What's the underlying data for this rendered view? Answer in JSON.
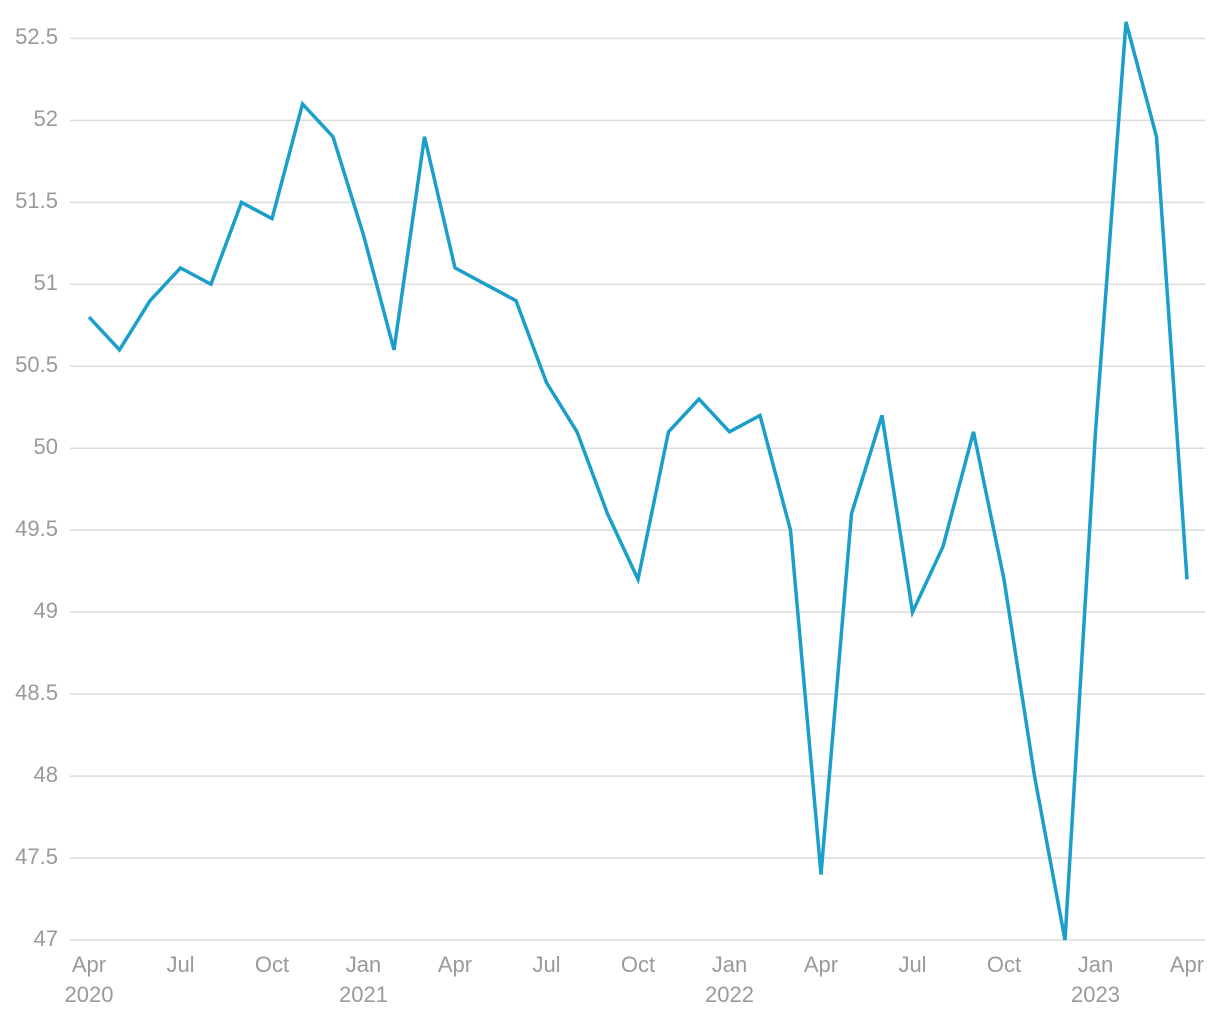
{
  "chart_data": {
    "type": "line",
    "x": [
      "2020-04",
      "2020-05",
      "2020-06",
      "2020-07",
      "2020-08",
      "2020-09",
      "2020-10",
      "2020-11",
      "2020-12",
      "2021-01",
      "2021-02",
      "2021-03",
      "2021-04",
      "2021-05",
      "2021-06",
      "2021-07",
      "2021-08",
      "2021-09",
      "2021-10",
      "2021-11",
      "2021-12",
      "2022-01",
      "2022-02",
      "2022-03",
      "2022-04",
      "2022-05",
      "2022-06",
      "2022-07",
      "2022-08",
      "2022-09",
      "2022-10",
      "2022-11",
      "2022-12",
      "2023-01",
      "2023-02",
      "2023-03",
      "2023-04"
    ],
    "series": [
      {
        "color": "#1a9fcb",
        "values": [
          50.8,
          50.6,
          50.9,
          51.1,
          51.0,
          51.5,
          51.4,
          52.1,
          51.9,
          51.3,
          50.6,
          51.9,
          51.1,
          51.0,
          50.9,
          50.4,
          50.1,
          49.6,
          49.2,
          50.1,
          50.3,
          50.1,
          50.2,
          49.5,
          47.4,
          49.6,
          50.2,
          49.0,
          49.4,
          50.1,
          49.2,
          48.0,
          47.0,
          50.1,
          52.6,
          51.9,
          49.2
        ]
      }
    ],
    "ylim": [
      47,
      52.6
    ],
    "yticks": [
      47,
      47.5,
      48,
      48.5,
      49,
      49.5,
      50,
      50.5,
      51,
      51.5,
      52,
      52.5
    ],
    "xticks": [
      {
        "value": "2020-04",
        "label": "Apr"
      },
      {
        "value": "2020-07",
        "label": "Jul"
      },
      {
        "value": "2020-10",
        "label": "Oct"
      },
      {
        "value": "2021-01",
        "label": "Jan"
      },
      {
        "value": "2021-04",
        "label": "Apr"
      },
      {
        "value": "2021-07",
        "label": "Jul"
      },
      {
        "value": "2021-10",
        "label": "Oct"
      },
      {
        "value": "2022-01",
        "label": "Jan"
      },
      {
        "value": "2022-04",
        "label": "Apr"
      },
      {
        "value": "2022-07",
        "label": "Jul"
      },
      {
        "value": "2022-10",
        "label": "Oct"
      },
      {
        "value": "2023-01",
        "label": "Jan"
      },
      {
        "value": "2023-04",
        "label": "Apr"
      }
    ],
    "xtick_years": [
      {
        "value": "2020-04",
        "label": "2020"
      },
      {
        "value": "2021-01",
        "label": "2021"
      },
      {
        "value": "2022-01",
        "label": "2022"
      },
      {
        "value": "2023-01",
        "label": "2023"
      }
    ],
    "grid": true
  }
}
